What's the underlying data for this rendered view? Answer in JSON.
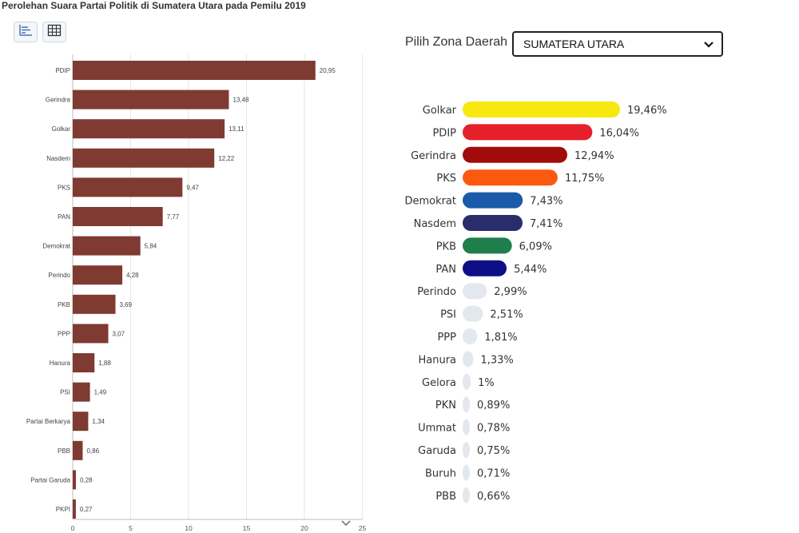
{
  "left_panel": {
    "title": "Perolehan Suara Partai Politik di Sumatera Utara pada Pemilu 2019",
    "toolbar": {
      "chart_view_icon": "bar-chart-icon",
      "table_view_icon": "table-grid-icon"
    }
  },
  "right_panel": {
    "zone_label": "Pilih Zona Daerah",
    "zone_select": {
      "selected": "SUMATERA UTARA",
      "icon": "chevron-down-icon"
    }
  },
  "colors": {
    "left_bar": "#7f3a32",
    "right_inactive": "#e3e8ee"
  },
  "chart_data": [
    {
      "type": "bar",
      "orientation": "horizontal",
      "title": "Perolehan Suara Partai Politik di Sumatera Utara pada Pemilu 2019",
      "categories": [
        "PDIP",
        "Gerindra",
        "Golkar",
        "Nasdem",
        "PKS",
        "PAN",
        "Demokrat",
        "Perindo",
        "PKB",
        "PPP",
        "Hanura",
        "PSI",
        "Partai Berkarya",
        "PBB",
        "Partai Garuda",
        "PKPI"
      ],
      "values": [
        20.95,
        13.48,
        13.11,
        12.22,
        9.47,
        7.77,
        5.84,
        4.28,
        3.69,
        3.07,
        1.88,
        1.49,
        1.34,
        0.86,
        0.28,
        0.27
      ],
      "value_labels": [
        "20,95",
        "13,48",
        "13,11",
        "12,22",
        "9,47",
        "7,77",
        "5,84",
        "4,28",
        "3,69",
        "3,07",
        "1,88",
        "1,49",
        "1,34",
        "0,86",
        "0,28",
        "0,27"
      ],
      "xlim": [
        0,
        25
      ],
      "x_ticks": [
        "0",
        "5",
        "10",
        "15",
        "20",
        "25"
      ],
      "grid": true,
      "color": "#7f3a32"
    },
    {
      "type": "bar",
      "orientation": "horizontal",
      "categories": [
        "Golkar",
        "PDIP",
        "Gerindra",
        "PKS",
        "Demokrat",
        "Nasdem",
        "PKB",
        "PAN",
        "Perindo",
        "PSI",
        "PPP",
        "Hanura",
        "Gelora",
        "PKN",
        "Ummat",
        "Garuda",
        "Buruh",
        "PBB"
      ],
      "values": [
        19.46,
        16.04,
        12.94,
        11.75,
        7.43,
        7.41,
        6.09,
        5.44,
        2.99,
        2.51,
        1.81,
        1.33,
        1,
        0.89,
        0.78,
        0.75,
        0.71,
        0.66
      ],
      "value_labels": [
        "19,46%",
        "16,04%",
        "12,94%",
        "11,75%",
        "7,43%",
        "7,41%",
        "6,09%",
        "5,44%",
        "2,99%",
        "2,51%",
        "1,81%",
        "1,33%",
        "1%",
        "0,89%",
        "0,78%",
        "0,75%",
        "0,71%",
        "0,66%"
      ],
      "colors": [
        "#f7e90f",
        "#e5202b",
        "#a10b0b",
        "#fb5a0e",
        "#1a5aa8",
        "#2a2d6c",
        "#1f7e4c",
        "#0e0f86",
        "#e3e8ee",
        "#e3e8ee",
        "#e3e8ee",
        "#e3e8ee",
        "#e3e8ee",
        "#e3e8ee",
        "#e3e8ee",
        "#e3e8ee",
        "#e3e8ee",
        "#e3e8ee"
      ],
      "xlim": [
        0,
        19.46
      ],
      "grid": false
    }
  ]
}
